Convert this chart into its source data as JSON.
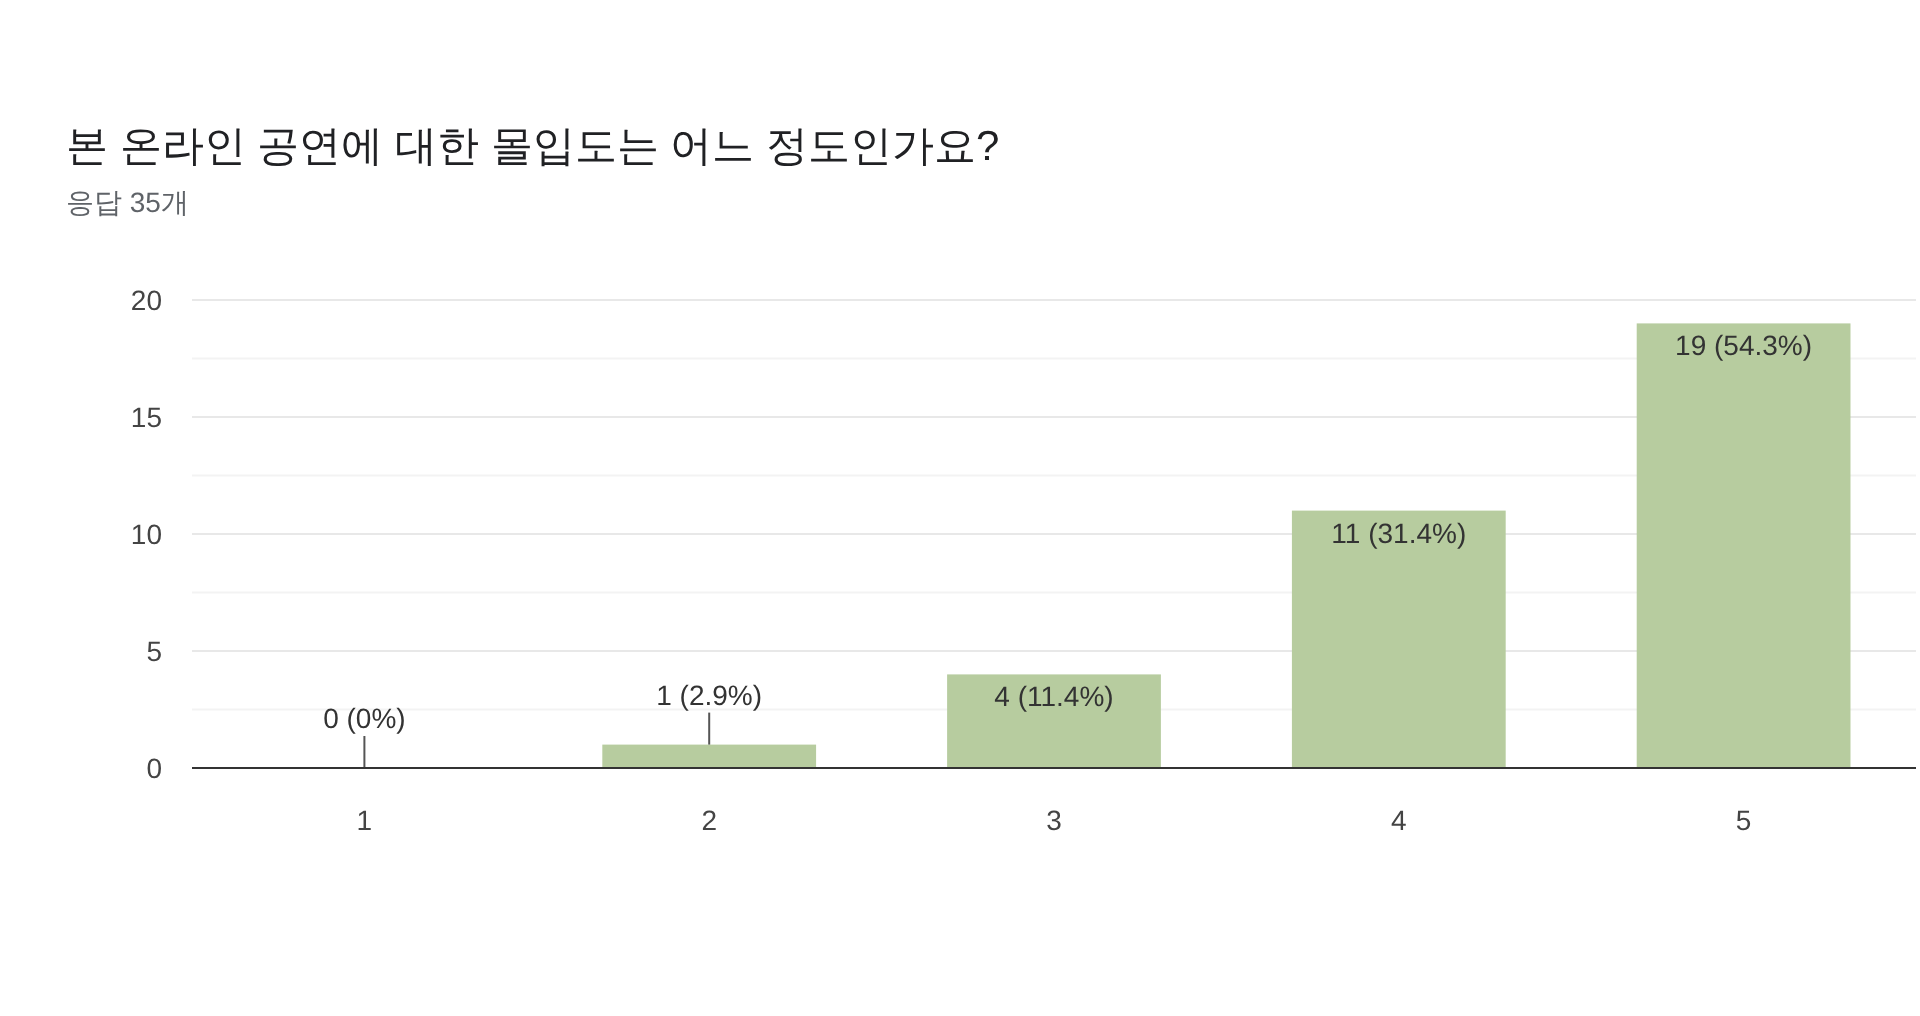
{
  "chart_data": {
    "type": "bar",
    "title": "본 온라인 공연에 대한 몰입도는 어느 정도인가요?",
    "subtitle": "응답 35개",
    "categories": [
      "1",
      "2",
      "3",
      "4",
      "5"
    ],
    "values": [
      0,
      1,
      4,
      11,
      19
    ],
    "value_labels": [
      "0 (0%)",
      "1 (2.9%)",
      "4 (11.4%)",
      "11 (31.4%)",
      "19 (54.3%)"
    ],
    "color": "#b7cc9f",
    "ylim": [
      0,
      20
    ],
    "yticks": [
      0,
      {
        "value": 2.5,
        "label": null
      },
      5,
      {
        "value": 7.5,
        "label": null
      },
      10,
      {
        "value": 12.5,
        "label": null
      },
      15,
      {
        "value": 17.5,
        "label": null
      },
      20
    ],
    "grid": "y"
  }
}
